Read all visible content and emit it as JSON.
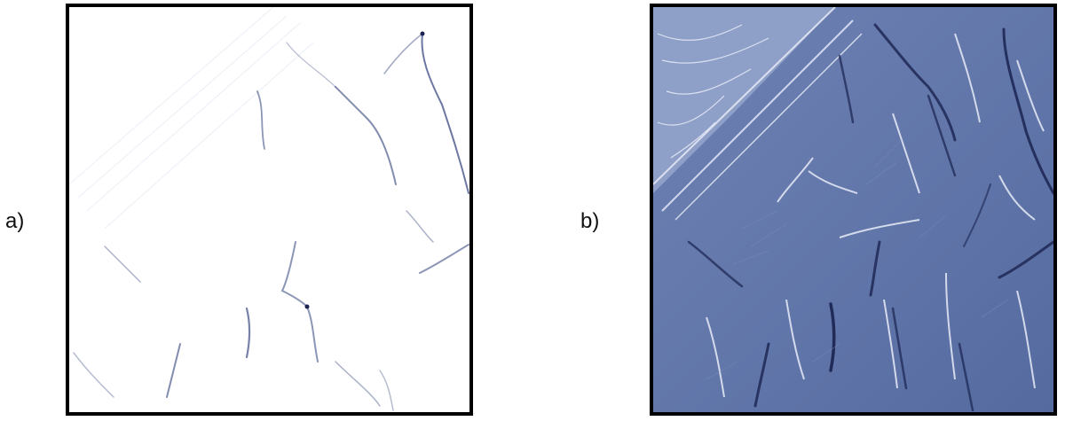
{
  "figure": {
    "panel_a": {
      "label": "a)",
      "map_type": "flow-accumulation-map",
      "background_color": "#ffffff",
      "channel_color": "#2e3f7a"
    },
    "panel_b": {
      "label": "b)",
      "map_type": "log-flow-accumulation-map",
      "background_color": "#5a6fa3",
      "channel_color": "#1a2350",
      "ridge_color": "#e8ecf7"
    }
  }
}
